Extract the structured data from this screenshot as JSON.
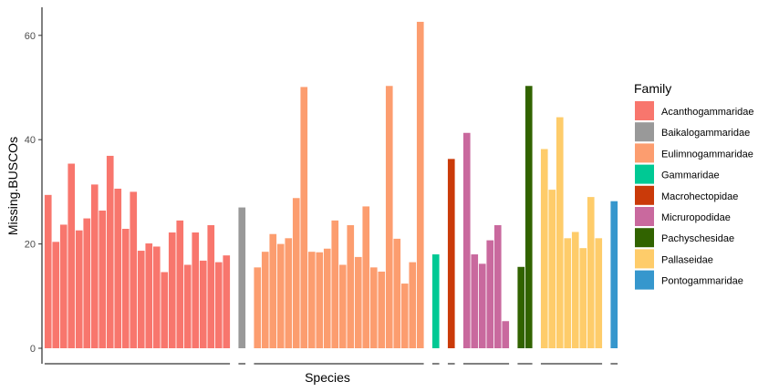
{
  "chart_data": {
    "type": "bar",
    "xlabel": "Species",
    "ylabel": "Missing.BUSCOs",
    "ylim": [
      0,
      65
    ],
    "yticks": [
      "0",
      "20",
      "40",
      "60"
    ],
    "grid": false,
    "legend_position": "right",
    "legend_title": "Family",
    "families": [
      {
        "name": "Acanthogammaridae",
        "color": "#F8766D",
        "values": [
          29.4,
          20.4,
          23.7,
          35.4,
          22.6,
          24.9,
          31.4,
          26.4,
          36.9,
          30.6,
          22.9,
          30.0,
          18.7,
          20.1,
          19.5,
          14.6,
          22.2,
          24.5,
          16.0,
          22.2,
          16.8,
          23.6,
          16.5,
          17.8
        ]
      },
      {
        "name": "Baikalogammaridae",
        "color": "#999999",
        "values": [
          27.0
        ]
      },
      {
        "name": "Eulimnogammaridae",
        "color": "#FC9D6F",
        "values": [
          15.5,
          18.5,
          21.9,
          20.0,
          21.1,
          28.8,
          50.1,
          18.5,
          18.4,
          19.1,
          24.5,
          16.0,
          23.6,
          17.5,
          27.2,
          15.5,
          14.7,
          50.3,
          21.0,
          12.4,
          16.5,
          62.6
        ]
      },
      {
        "name": "Gammaridae",
        "color": "#00C994",
        "values": [
          18.0
        ]
      },
      {
        "name": "Macrohectopidae",
        "color": "#CA3A09",
        "values": [
          36.3
        ]
      },
      {
        "name": "Micruropodidae",
        "color": "#C9699E",
        "values": [
          41.3,
          18.0,
          16.2,
          20.7,
          23.6,
          5.2
        ]
      },
      {
        "name": "Pachyschesidae",
        "color": "#316300",
        "values": [
          15.6,
          50.3
        ]
      },
      {
        "name": "Pallaseidae",
        "color": "#FECC6A",
        "values": [
          38.2,
          30.4,
          44.3,
          21.1,
          22.3,
          19.2,
          29.0,
          21.1
        ]
      },
      {
        "name": "Pontogammaridae",
        "color": "#3697CD",
        "values": [
          28.2
        ]
      }
    ]
  }
}
